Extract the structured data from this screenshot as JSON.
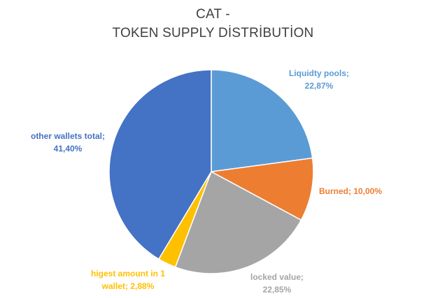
{
  "chart_data": {
    "type": "pie",
    "title_line_1": "CAT -",
    "title_line_2": "TOKEN SUPPLY DİSTRİBUTİON",
    "slices": [
      {
        "label_line_1": "Liquidty pools;",
        "label_line_2": "22,87%",
        "value": 22.87,
        "color": "#5b9bd5"
      },
      {
        "label_line_1": "Burned; 10,00%",
        "label_line_2": "",
        "value": 10.0,
        "color": "#ed7d31"
      },
      {
        "label_line_1": "locked value;",
        "label_line_2": "22,85%",
        "value": 22.85,
        "color": "#a5a5a5"
      },
      {
        "label_line_1": "higest amount in 1",
        "label_line_2": "wallet; 2,88%",
        "value": 2.88,
        "color": "#ffc000"
      },
      {
        "label_line_1": "other wallets total;",
        "label_line_2": "41,40%",
        "value": 41.4,
        "color": "#4472c4"
      }
    ],
    "legend": "none"
  }
}
